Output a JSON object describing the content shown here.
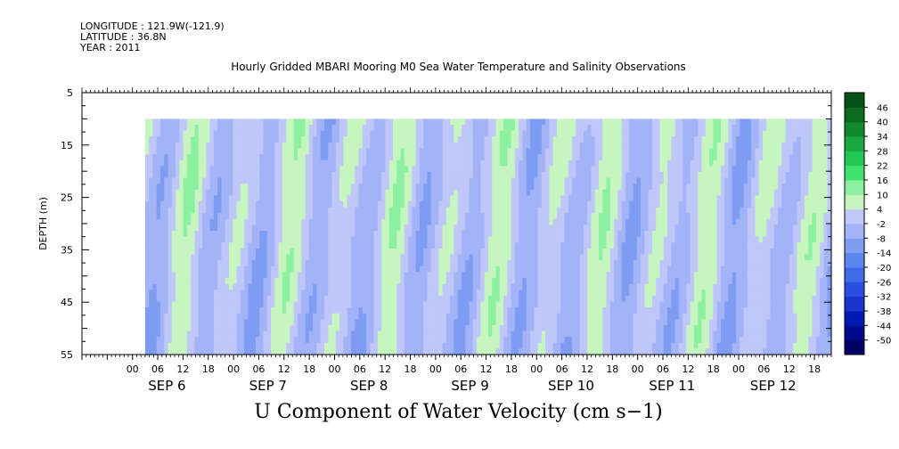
{
  "meta": {
    "longitude": "LONGITUDE : 121.9W(-121.9)",
    "latitude": "LATITUDE : 36.8N",
    "year": "YEAR : 2011"
  },
  "title": "Hourly Gridded MBARI Mooring M0 Sea Water Temperature and Salinity Observations",
  "chart_data": {
    "type": "heatmap",
    "title": "U Component of Water Velocity (cm s−1)",
    "ylabel": "DEPTH (m)",
    "xlabel": "",
    "ylim": [
      55,
      5
    ],
    "y_ticks": [
      "5",
      "15",
      "25",
      "35",
      "45",
      "55"
    ],
    "data_depth_range": [
      10,
      55
    ],
    "x_hour_ticks": [
      "00",
      "06",
      "12",
      "18",
      "00",
      "06",
      "12",
      "18",
      "00",
      "06",
      "12",
      "18",
      "00",
      "06",
      "12",
      "18",
      "00",
      "06",
      "12",
      "18",
      "00",
      "06",
      "12",
      "18",
      "00",
      "06",
      "12",
      "18"
    ],
    "x_day_labels": [
      "SEP  6",
      "SEP  7",
      "SEP  8",
      "SEP  9",
      "SEP 10",
      "SEP 11",
      "SEP 12"
    ],
    "x_range_days": [
      "SEP 5 12:00",
      "SEP 12 22:00"
    ],
    "data_start": "SEP 6 03:00",
    "colorbar": {
      "levels": [
        -50,
        -44,
        -38,
        -32,
        -26,
        -20,
        -14,
        -8,
        -2,
        4,
        10,
        16,
        22,
        28,
        34,
        40,
        46
      ],
      "tick_labels": [
        "46",
        "40",
        "34",
        "28",
        "22",
        "16",
        "10",
        "4",
        "-2",
        "-8",
        "-14",
        "-20",
        "-26",
        "-32",
        "-38",
        "-44",
        "-50"
      ],
      "colors": [
        "#000066",
        "#000a8c",
        "#0019b3",
        "#1a33cc",
        "#2a4fe0",
        "#3f6be8",
        "#5c85ee",
        "#7f9cf3",
        "#a3b3f7",
        "#bfc6f9",
        "#c6f5c0",
        "#8cf0a0",
        "#3fe070",
        "#22c855",
        "#1aa840",
        "#10882e",
        "#0a6a20",
        "#055016"
      ]
    },
    "u_pattern_note": "alternating positive (green) and negative (blue) velocity bands over time, roughly semi-diurnal"
  }
}
